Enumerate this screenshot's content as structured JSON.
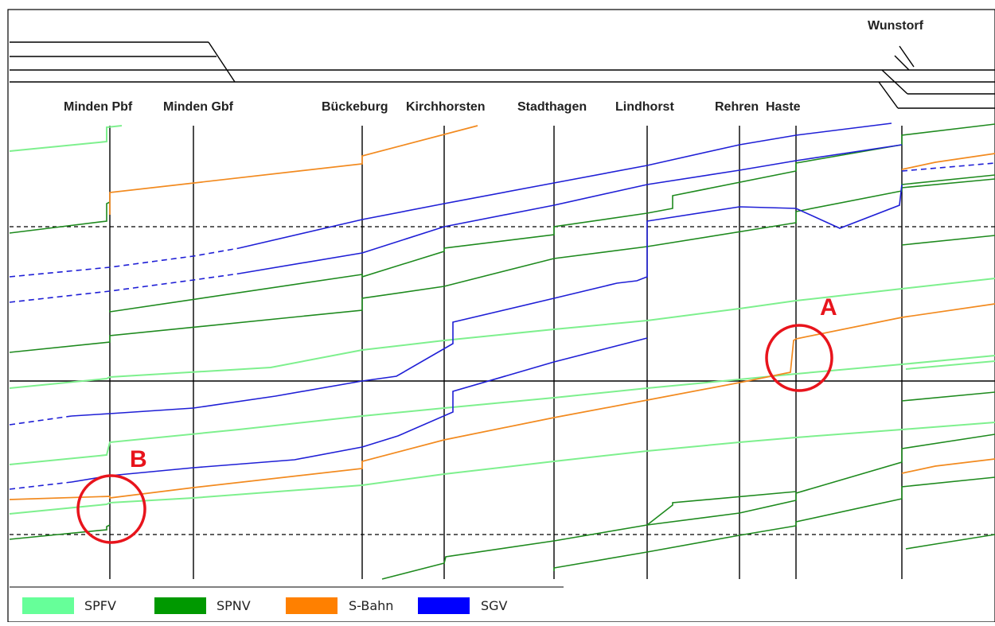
{
  "stations": [
    {
      "id": "minden-pbf",
      "label": "Minden Pbf"
    },
    {
      "id": "minden-gbf",
      "label": "Minden Gbf"
    },
    {
      "id": "bueckeburg",
      "label": "Bückeburg"
    },
    {
      "id": "kirchhorsten",
      "label": "Kirchhorsten"
    },
    {
      "id": "stadthagen",
      "label": "Stadthagen"
    },
    {
      "id": "lindhorst",
      "label": "Lindhorst"
    },
    {
      "id": "rehren",
      "label": "Rehren"
    },
    {
      "id": "haste",
      "label": "Haste"
    },
    {
      "id": "wunstorf",
      "label": "Wunstorf"
    }
  ],
  "markers": [
    {
      "id": "a",
      "label": "A",
      "color": "#e8141c"
    },
    {
      "id": "b",
      "label": "B",
      "color": "#e8141c"
    }
  ],
  "legend": [
    {
      "label": "SPFV",
      "color": "#66ff99"
    },
    {
      "label": "SPNV",
      "color": "#009900"
    },
    {
      "label": "S-Bahn",
      "color": "#ff8000"
    },
    {
      "label": "SGV",
      "color": "#0000ff"
    }
  ],
  "line_colors": {
    "SPFV": "#7ef08e",
    "SPNV": "#1e8a1e",
    "S-Bahn": "#f28a1f",
    "SGV": "#1f1fd6"
  }
}
